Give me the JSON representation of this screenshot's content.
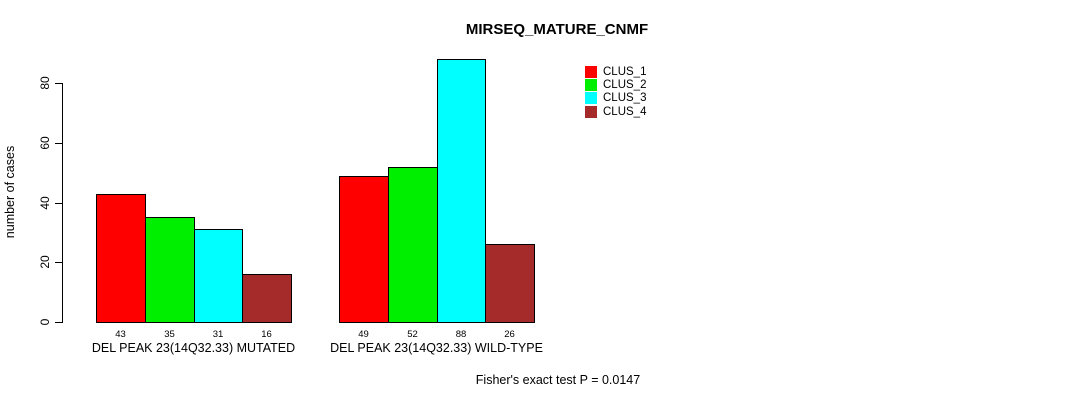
{
  "chart_data": {
    "type": "bar",
    "title": "MIRSEQ_MATURE_CNMF",
    "ylabel": "number of cases",
    "xlabel": "",
    "ylim": [
      0,
      88
    ],
    "yticks": [
      0,
      20,
      40,
      60,
      80
    ],
    "grid": false,
    "legend_position": "top-right",
    "categories": [
      "DEL PEAK 23(14Q32.33) MUTATED",
      "DEL PEAK 23(14Q32.33) WILD-TYPE"
    ],
    "series": [
      {
        "name": "CLUS_1",
        "color": "#ff0000",
        "values": [
          43,
          49
        ]
      },
      {
        "name": "CLUS_2",
        "color": "#00ee00",
        "values": [
          35,
          52
        ]
      },
      {
        "name": "CLUS_3",
        "color": "#00ffff",
        "values": [
          31,
          88
        ]
      },
      {
        "name": "CLUS_4",
        "color": "#a52a2a",
        "values": [
          16,
          26
        ]
      }
    ],
    "bar_value_labels": [
      [
        43,
        35,
        31,
        16
      ],
      [
        49,
        52,
        88,
        26
      ]
    ],
    "annotation": "Fisher's exact test P = 0.0147"
  },
  "colors": {
    "axis": "#000000",
    "text": "#000000",
    "background": "#ffffff"
  }
}
